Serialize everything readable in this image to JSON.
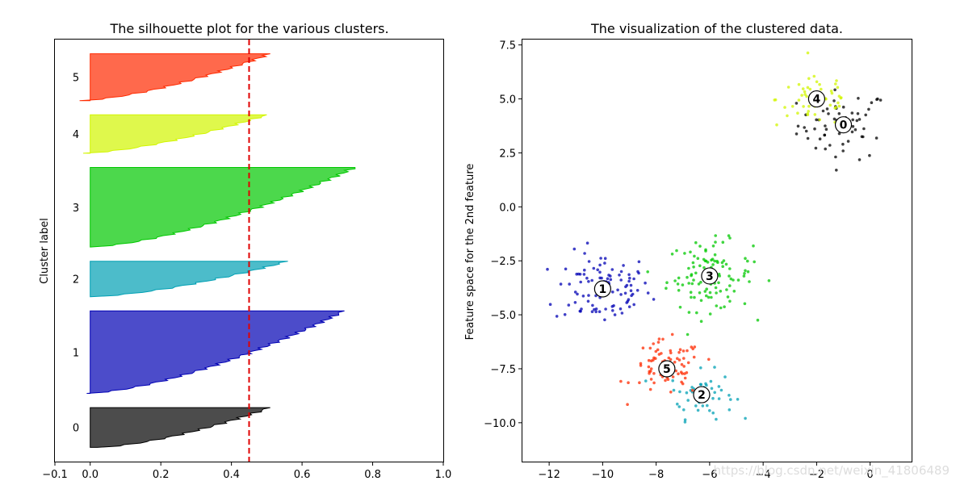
{
  "chart_data": [
    {
      "type": "area",
      "title": "The silhouette plot for the various clusters.",
      "xlabel": "",
      "ylabel": "Cluster label",
      "xlim": [
        -0.1,
        1.0
      ],
      "x_ticks": [
        -0.1,
        0.0,
        0.2,
        0.4,
        0.6,
        0.8,
        1.0
      ],
      "x_tick_labels": [
        "−0.1",
        "0.0",
        "0.2",
        "0.4",
        "0.6",
        "0.8",
        "1.0"
      ],
      "grid": false,
      "average_silhouette_score": 0.45,
      "series": [
        {
          "label": "0",
          "color": "#000000",
          "samples": 28,
          "min": 0.02,
          "max": 0.51
        },
        {
          "label": "1",
          "color": "#0000b4",
          "samples": 58,
          "min": -0.01,
          "max": 0.72
        },
        {
          "label": "2",
          "color": "#00a0b4",
          "samples": 25,
          "min": 0.0,
          "max": 0.56
        },
        {
          "label": "3",
          "color": "#00c800",
          "samples": 56,
          "min": 0.0,
          "max": 0.75
        },
        {
          "label": "4",
          "color": "#d2f500",
          "samples": 27,
          "min": -0.02,
          "max": 0.5
        },
        {
          "label": "5",
          "color": "#ff2a00",
          "samples": 33,
          "min": -0.03,
          "max": 0.51
        }
      ]
    },
    {
      "type": "scatter",
      "title": "The visualization of the clustered data.",
      "xlabel": "",
      "ylabel": "Feature space for the 2nd feature",
      "xlim": [
        -13.0,
        1.55
      ],
      "ylim": [
        -11.8,
        7.75
      ],
      "x_ticks": [
        -12,
        -10,
        -8,
        -6,
        -4,
        -2,
        0
      ],
      "x_tick_labels": [
        "−12",
        "−10",
        "−8",
        "−6",
        "−4",
        "−2",
        "0"
      ],
      "y_ticks": [
        -10.0,
        -7.5,
        -5.0,
        -2.5,
        0.0,
        2.5,
        5.0,
        7.5
      ],
      "y_tick_labels": [
        "−10.0",
        "−7.5",
        "−5.0",
        "−2.5",
        "0.0",
        "2.5",
        "5.0",
        "7.5"
      ],
      "grid": false,
      "clusters": [
        {
          "label": "0",
          "color": "#000000",
          "center": [
            -1.0,
            3.8
          ],
          "spread": [
            0.85,
            0.8
          ],
          "n": 60
        },
        {
          "label": "1",
          "color": "#0000b4",
          "center": [
            -10.0,
            -3.8
          ],
          "spread": [
            0.9,
            0.85
          ],
          "n": 100
        },
        {
          "label": "2",
          "color": "#00a0b4",
          "center": [
            -6.3,
            -8.7
          ],
          "spread": [
            0.6,
            0.55
          ],
          "n": 55
        },
        {
          "label": "3",
          "color": "#00c800",
          "center": [
            -6.0,
            -3.2
          ],
          "spread": [
            0.8,
            0.8
          ],
          "n": 110
        },
        {
          "label": "4",
          "color": "#d2f500",
          "center": [
            -2.0,
            5.0
          ],
          "spread": [
            0.75,
            0.65
          ],
          "n": 55
        },
        {
          "label": "5",
          "color": "#ff2a00",
          "center": [
            -7.6,
            -7.5
          ],
          "spread": [
            0.65,
            0.65
          ],
          "n": 80
        }
      ]
    }
  ],
  "watermark": "https://blog.csdn.net/weixin_41806489"
}
